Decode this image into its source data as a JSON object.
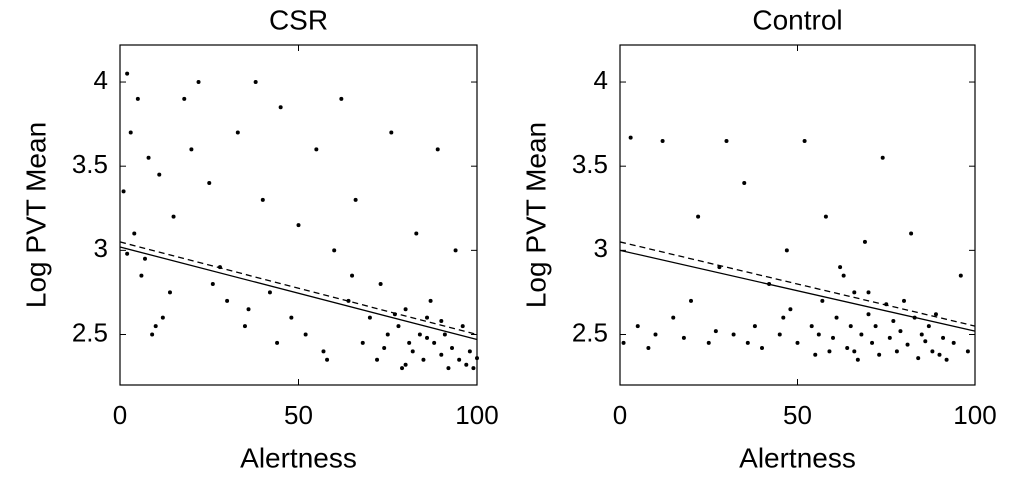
{
  "chart_data": [
    {
      "type": "scatter",
      "title": "CSR",
      "xlabel": "Alertness",
      "ylabel": "Log PVT Mean",
      "xlim": [
        0,
        100
      ],
      "ylim": [
        2.2,
        4.22
      ],
      "xticks": [
        0,
        50,
        100
      ],
      "yticks": [
        2.5,
        3,
        3.5,
        4
      ],
      "series": [
        {
          "color": "#000000",
          "x": [
            2,
            5,
            3,
            8,
            1,
            4,
            2,
            6,
            10,
            9,
            12,
            15,
            18,
            20,
            22,
            25,
            28,
            30,
            33,
            35,
            38,
            40,
            42,
            45,
            48,
            50,
            52,
            55,
            57,
            60,
            62,
            64,
            66,
            68,
            70,
            72,
            73,
            75,
            76,
            78,
            79,
            80,
            81,
            82,
            83,
            84,
            85,
            86,
            87,
            88,
            89,
            90,
            91,
            92,
            93,
            94,
            95,
            96,
            97,
            98,
            99,
            100,
            74,
            77,
            86,
            90,
            80,
            65,
            58,
            44,
            36,
            26,
            14,
            11,
            7
          ],
          "values": [
            4.05,
            3.9,
            3.7,
            3.55,
            3.35,
            3.1,
            2.98,
            2.85,
            2.55,
            2.5,
            2.6,
            3.2,
            3.9,
            3.6,
            4.0,
            3.4,
            2.9,
            2.7,
            3.7,
            2.55,
            4.0,
            3.3,
            2.75,
            3.85,
            2.6,
            3.15,
            2.5,
            3.6,
            2.4,
            3.0,
            3.9,
            2.7,
            3.3,
            2.45,
            2.6,
            2.35,
            2.8,
            2.5,
            3.7,
            2.55,
            2.3,
            2.65,
            2.45,
            2.4,
            3.1,
            2.5,
            2.35,
            2.6,
            2.7,
            2.45,
            3.6,
            2.38,
            2.5,
            2.3,
            2.42,
            3.0,
            2.35,
            2.55,
            2.32,
            2.4,
            2.3,
            2.36,
            2.42,
            2.62,
            2.48,
            2.58,
            2.32,
            2.85,
            2.35,
            2.45,
            2.65,
            2.8,
            2.75,
            3.45,
            2.95
          ]
        }
      ],
      "lines": [
        {
          "dash": false,
          "x": [
            0,
            100
          ],
          "values": [
            3.02,
            2.47
          ]
        },
        {
          "dash": true,
          "x": [
            0,
            100
          ],
          "values": [
            3.05,
            2.5
          ]
        }
      ]
    },
    {
      "type": "scatter",
      "title": "Control",
      "xlabel": "Alertness",
      "ylabel": "Log PVT Mean",
      "xlim": [
        0,
        100
      ],
      "ylim": [
        2.2,
        4.22
      ],
      "xticks": [
        0,
        50,
        100
      ],
      "yticks": [
        2.5,
        3,
        3.5,
        4
      ],
      "series": [
        {
          "color": "#000000",
          "x": [
            1,
            3,
            5,
            8,
            12,
            15,
            18,
            20,
            22,
            25,
            28,
            30,
            32,
            35,
            38,
            40,
            42,
            45,
            47,
            48,
            50,
            52,
            54,
            55,
            57,
            58,
            60,
            61,
            62,
            64,
            65,
            66,
            67,
            68,
            69,
            70,
            71,
            72,
            73,
            74,
            75,
            76,
            77,
            78,
            79,
            80,
            81,
            82,
            83,
            84,
            85,
            86,
            87,
            88,
            89,
            90,
            91,
            92,
            94,
            96,
            98,
            63,
            59,
            46,
            36,
            27,
            10,
            56,
            70,
            66
          ],
          "values": [
            2.45,
            3.67,
            2.55,
            2.42,
            3.65,
            2.6,
            2.48,
            2.7,
            3.2,
            2.45,
            2.9,
            3.65,
            2.5,
            3.4,
            2.55,
            2.42,
            2.8,
            2.5,
            3.0,
            2.65,
            2.45,
            3.65,
            2.55,
            2.38,
            2.7,
            3.2,
            2.48,
            2.6,
            2.9,
            2.42,
            2.55,
            2.75,
            2.35,
            2.5,
            3.05,
            2.62,
            2.45,
            2.55,
            2.38,
            3.55,
            2.68,
            2.48,
            2.58,
            2.4,
            2.52,
            2.7,
            2.44,
            3.1,
            2.6,
            2.36,
            2.5,
            2.46,
            2.55,
            2.4,
            2.62,
            2.38,
            2.48,
            2.35,
            2.45,
            2.85,
            2.4,
            2.85,
            2.4,
            2.6,
            2.45,
            2.52,
            2.5,
            2.5,
            2.75,
            2.4
          ]
        }
      ],
      "lines": [
        {
          "dash": false,
          "x": [
            0,
            100
          ],
          "values": [
            3.0,
            2.52
          ]
        },
        {
          "dash": true,
          "x": [
            0,
            100
          ],
          "values": [
            3.05,
            2.55
          ]
        }
      ]
    }
  ]
}
